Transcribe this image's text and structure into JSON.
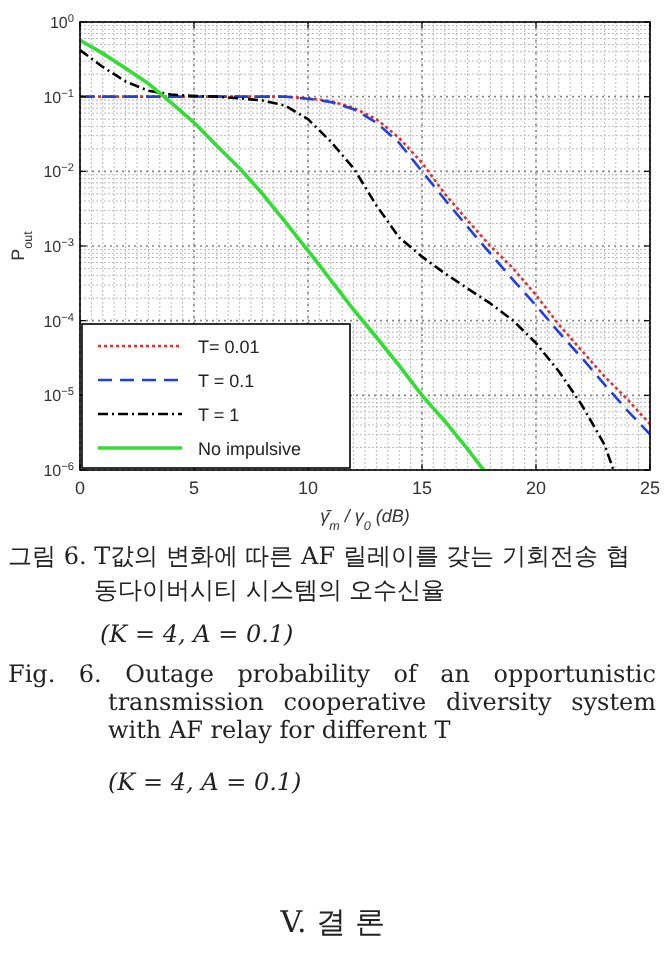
{
  "chart_data": {
    "type": "line",
    "xlabel": "γ̄$_{m}$ / γ$_{0}$ (dB)",
    "ylabel": "P$_{out}$",
    "log": "y",
    "xlim": [
      0,
      25
    ],
    "xticks": [
      0,
      5,
      10,
      15,
      20,
      25
    ],
    "ylim": [
      1e-06,
      1
    ],
    "yticks": [
      {
        "value": 1,
        "label": "10$^{0}$"
      },
      {
        "value": 0.1,
        "label": "10$^{−1}$"
      },
      {
        "value": 0.01,
        "label": "10$^{−2}$"
      },
      {
        "value": 0.001,
        "label": "10$^{−3}$"
      },
      {
        "value": 0.0001,
        "label": "10$^{−4}$"
      },
      {
        "value": 1e-05,
        "label": "10$^{−5}$"
      },
      {
        "value": 1e-06,
        "label": "10$^{−6}$"
      }
    ],
    "grid": true,
    "legend": "bottom left",
    "series": [
      {
        "name": "T= 0.01",
        "color": "#e03030",
        "line_style": "dotted",
        "x": [
          0,
          2,
          4,
          6,
          8,
          9,
          10,
          11,
          12,
          13,
          14,
          15,
          16,
          17,
          18,
          19,
          20,
          21,
          22,
          23,
          24,
          25
        ],
        "values": [
          0.1,
          0.1,
          0.1,
          0.1,
          0.1,
          0.1,
          0.095,
          0.087,
          0.071,
          0.05,
          0.028,
          0.013,
          0.005,
          0.0022,
          0.001,
          0.0005,
          0.00022,
          8.9e-05,
          4e-05,
          1.8e-05,
          8.9e-06,
          4.1e-06
        ]
      },
      {
        "name": "T = 0.1",
        "color": "#2040e0",
        "line_style": "dashed",
        "x": [
          0,
          2,
          4,
          6,
          8,
          9,
          10,
          11,
          12,
          13,
          14,
          15,
          16,
          17,
          18,
          19,
          20,
          21,
          22,
          23,
          24,
          25
        ],
        "values": [
          0.1,
          0.1,
          0.1,
          0.1,
          0.1,
          0.1,
          0.094,
          0.085,
          0.068,
          0.045,
          0.024,
          0.01,
          0.0042,
          0.0018,
          0.00079,
          0.00035,
          0.00016,
          7e-05,
          3.2e-05,
          1.4e-05,
          6.3e-06,
          3e-06
        ]
      },
      {
        "name": "T = 1",
        "color": "#000000",
        "line_style": "dashdot",
        "x": [
          0,
          1,
          2,
          3,
          4,
          5,
          6,
          7,
          8,
          9,
          10,
          11,
          12,
          13,
          14,
          15,
          16,
          17,
          18,
          19,
          20,
          21,
          22,
          23,
          23.4
        ],
        "values": [
          0.42,
          0.25,
          0.16,
          0.12,
          0.107,
          0.102,
          0.1,
          0.095,
          0.089,
          0.076,
          0.05,
          0.025,
          0.011,
          0.0035,
          0.0013,
          0.00072,
          0.00043,
          0.00027,
          0.00017,
          0.0001,
          5e-05,
          2.1e-05,
          7.5e-06,
          2.2e-06,
          1e-06
        ]
      },
      {
        "name": "No impulsive",
        "color": "#33dd33",
        "line_style": "solid",
        "x": [
          0,
          1,
          2,
          3,
          4,
          5,
          6,
          7,
          8,
          9,
          10,
          11,
          12,
          13,
          14,
          15,
          16,
          17,
          17.7
        ],
        "values": [
          0.57,
          0.38,
          0.24,
          0.15,
          0.083,
          0.045,
          0.022,
          0.011,
          0.005,
          0.0021,
          0.00087,
          0.00035,
          0.00014,
          6e-05,
          2.5e-05,
          1e-05,
          4.5e-06,
          1.9e-06,
          1e-06
        ]
      }
    ],
    "annotations": [
      "그림 6. T값의 변화에 따른 AF 릴레이를 갖는 기회전송 협동다이버시티 시스템의 오수신율",
      "(K = 4, A = 0.1)",
      "Fig. 6. Outage probability of an opportunistic transmission cooperative diversity system with AF relay for different T",
      "(K = 4, A = 0.1)",
      "V. 결 론"
    ]
  }
}
